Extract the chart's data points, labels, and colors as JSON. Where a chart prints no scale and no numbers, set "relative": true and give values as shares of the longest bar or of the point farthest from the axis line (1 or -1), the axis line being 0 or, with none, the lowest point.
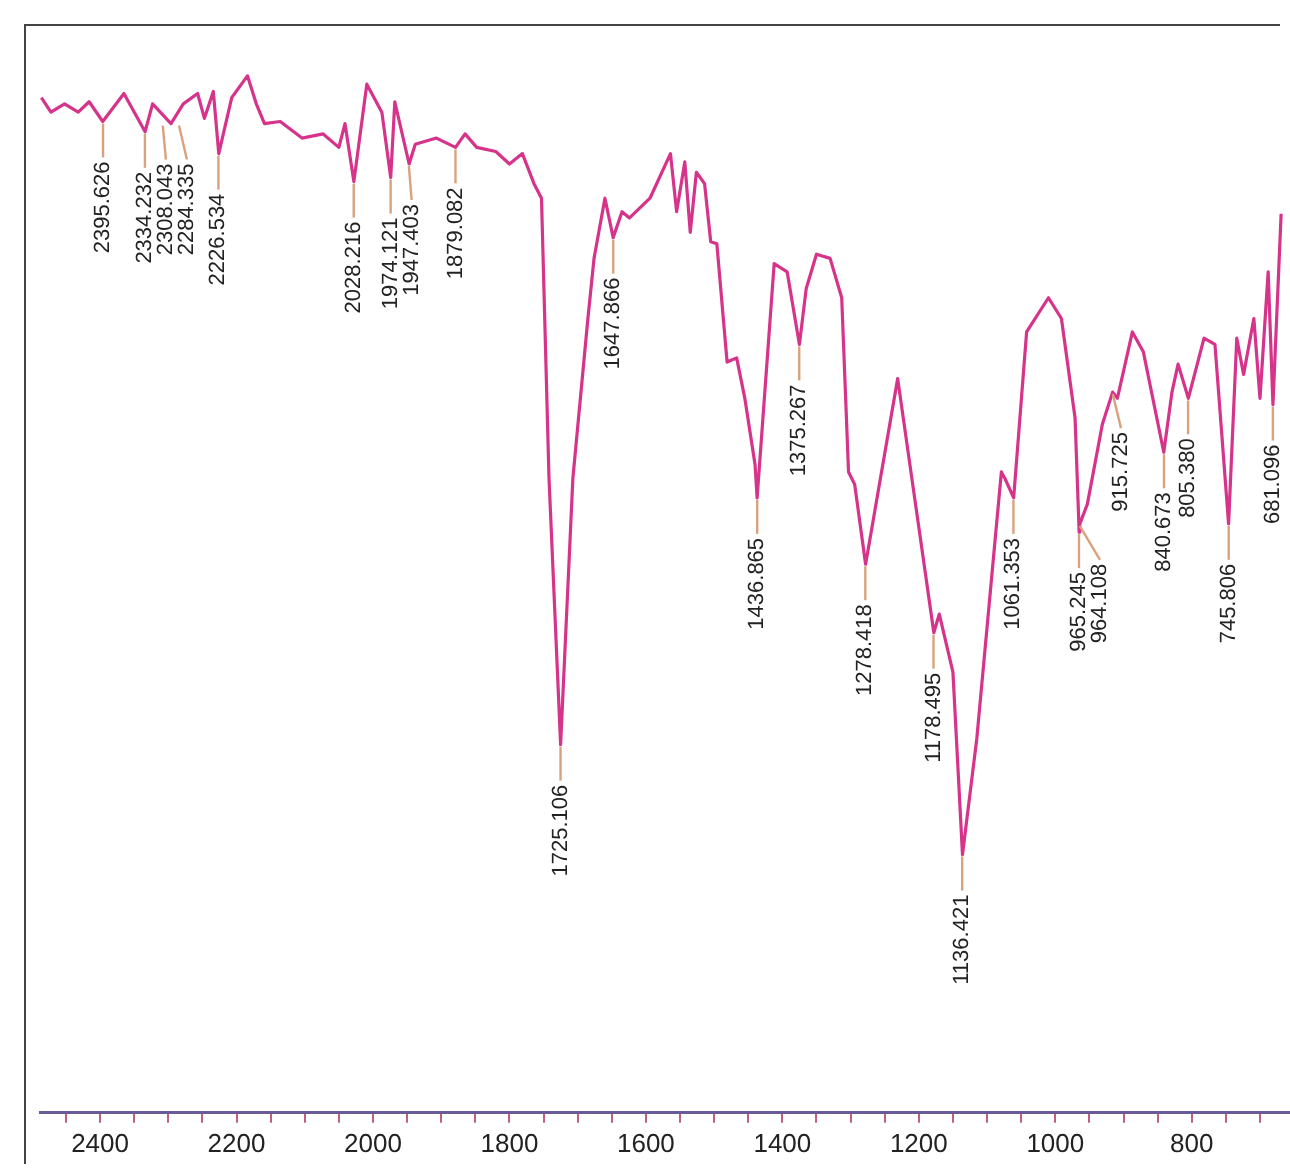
{
  "chart_data": {
    "type": "line",
    "relative": true,
    "x": [
      2486,
      2472,
      2452,
      2432,
      2416,
      2396,
      2365,
      2334,
      2323,
      2296,
      2278,
      2257,
      2247,
      2234,
      2226,
      2207,
      2184,
      2171,
      2159,
      2136,
      2104,
      2073,
      2050,
      2041,
      2028,
      2009,
      1987,
      1974,
      1968,
      1947,
      1938,
      1907,
      1879,
      1865,
      1848,
      1820,
      1800,
      1781,
      1764,
      1753,
      1742,
      1725,
      1707,
      1685,
      1676,
      1660,
      1648,
      1635,
      1624,
      1594,
      1564,
      1555,
      1543,
      1535,
      1526,
      1514,
      1505,
      1496,
      1481,
      1467,
      1455,
      1440,
      1437,
      1412,
      1393,
      1375,
      1365,
      1350,
      1330,
      1313,
      1303,
      1294,
      1278,
      1231,
      1178,
      1170,
      1150,
      1136,
      1115,
      1088,
      1079,
      1074,
      1061,
      1042,
      1010,
      991,
      971,
      965,
      964,
      953,
      931,
      916,
      909,
      887,
      871,
      841,
      829,
      820,
      805,
      782,
      766,
      746,
      734,
      724,
      709,
      700,
      688,
      681,
      669
    ],
    "series": [
      {
        "color": "#d6338a",
        "values": [
          0.979,
          0.965,
          0.973,
          0.965,
          0.975,
          0.956,
          0.983,
          0.946,
          0.973,
          0.954,
          0.973,
          0.983,
          0.959,
          0.985,
          0.925,
          0.979,
          1,
          0.973,
          0.954,
          0.956,
          0.94,
          0.944,
          0.931,
          0.954,
          0.898,
          0.992,
          0.965,
          0.902,
          0.975,
          0.915,
          0.934,
          0.94,
          0.931,
          0.944,
          0.931,
          0.927,
          0.915,
          0.925,
          0.896,
          0.882,
          0.612,
          0.355,
          0.612,
          0.766,
          0.824,
          0.882,
          0.844,
          0.869,
          0.863,
          0.882,
          0.925,
          0.869,
          0.917,
          0.849,
          0.907,
          0.896,
          0.84,
          0.838,
          0.724,
          0.728,
          0.689,
          0.625,
          0.593,
          0.819,
          0.811,
          0.741,
          0.795,
          0.828,
          0.824,
          0.786,
          0.618,
          0.606,
          0.529,
          0.708,
          0.463,
          0.481,
          0.425,
          0.249,
          0.361,
          0.554,
          0.618,
          0.612,
          0.593,
          0.753,
          0.786,
          0.766,
          0.67,
          0.56,
          0.568,
          0.587,
          0.664,
          0.695,
          0.689,
          0.753,
          0.734,
          0.637,
          0.695,
          0.722,
          0.689,
          0.747,
          0.741,
          0.568,
          0.747,
          0.712,
          0.766,
          0.689,
          0.811,
          0.683,
          0.867
        ]
      }
    ],
    "xlim": [
      2488,
      656
    ],
    "xticks": [
      {
        "value": 2450,
        "label": null
      },
      2400,
      {
        "value": 2350,
        "label": null
      },
      {
        "value": 2300,
        "label": null
      },
      {
        "value": 2250,
        "label": null
      },
      2200,
      {
        "value": 2150,
        "label": null
      },
      {
        "value": 2100,
        "label": null
      },
      {
        "value": 2050,
        "label": null
      },
      2000,
      {
        "value": 1950,
        "label": null
      },
      {
        "value": 1900,
        "label": null
      },
      {
        "value": 1850,
        "label": null
      },
      1800,
      {
        "value": 1750,
        "label": null
      },
      {
        "value": 1700,
        "label": null
      },
      {
        "value": 1650,
        "label": null
      },
      1600,
      {
        "value": 1550,
        "label": null
      },
      {
        "value": 1500,
        "label": null
      },
      {
        "value": 1450,
        "label": null
      },
      1400,
      {
        "value": 1350,
        "label": null
      },
      {
        "value": 1300,
        "label": null
      },
      {
        "value": 1250,
        "label": null
      },
      1200,
      {
        "value": 1150,
        "label": null
      },
      {
        "value": 1100,
        "label": null
      },
      {
        "value": 1050,
        "label": null
      },
      1000,
      {
        "value": 950,
        "label": null
      },
      {
        "value": 900,
        "label": null
      },
      {
        "value": 850,
        "label": null
      },
      800,
      {
        "value": 750,
        "label": null
      },
      {
        "value": 700,
        "label": null
      }
    ],
    "grid": false,
    "legend": false,
    "annotations": [
      {
        "text": "2395.626",
        "x": 2395.626,
        "y": 0.956
      },
      {
        "text": "2334.232",
        "x": 2334.232,
        "y": 0.946
      },
      {
        "text": "2308.043",
        "x": 2308.043,
        "y": 0.954
      },
      {
        "text": "2284.335",
        "x": 2284.335,
        "y": 0.954
      },
      {
        "text": "2226.534",
        "x": 2226.534,
        "y": 0.925
      },
      {
        "text": "2028.216",
        "x": 2028.216,
        "y": 0.898
      },
      {
        "text": "1974.121",
        "x": 1974.121,
        "y": 0.902
      },
      {
        "text": "1947.403",
        "x": 1947.403,
        "y": 0.915
      },
      {
        "text": "1879.082",
        "x": 1879.082,
        "y": 0.931
      },
      {
        "text": "1725.106",
        "x": 1725.106,
        "y": 0.355
      },
      {
        "text": "1647.866",
        "x": 1647.866,
        "y": 0.844
      },
      {
        "text": "1436.865",
        "x": 1436.865,
        "y": 0.593
      },
      {
        "text": "1375.267",
        "x": 1375.267,
        "y": 0.741
      },
      {
        "text": "1278.418",
        "x": 1278.418,
        "y": 0.529
      },
      {
        "text": "1178.495",
        "x": 1178.495,
        "y": 0.463
      },
      {
        "text": "1136.421",
        "x": 1136.421,
        "y": 0.249
      },
      {
        "text": "1061.353",
        "x": 1061.353,
        "y": 0.593
      },
      {
        "text": "965.245",
        "x": 965.245,
        "y": 0.56
      },
      {
        "text": "964.108",
        "x": 964.108,
        "y": 0.568
      },
      {
        "text": "915.725",
        "x": 915.725,
        "y": 0.695
      },
      {
        "text": "840.673",
        "x": 840.673,
        "y": 0.637
      },
      {
        "text": "805.380",
        "x": 805.38,
        "y": 0.689
      },
      {
        "text": "745.806",
        "x": 745.806,
        "y": 0.568
      },
      {
        "text": "681.096",
        "x": 681.096,
        "y": 0.683
      }
    ]
  }
}
